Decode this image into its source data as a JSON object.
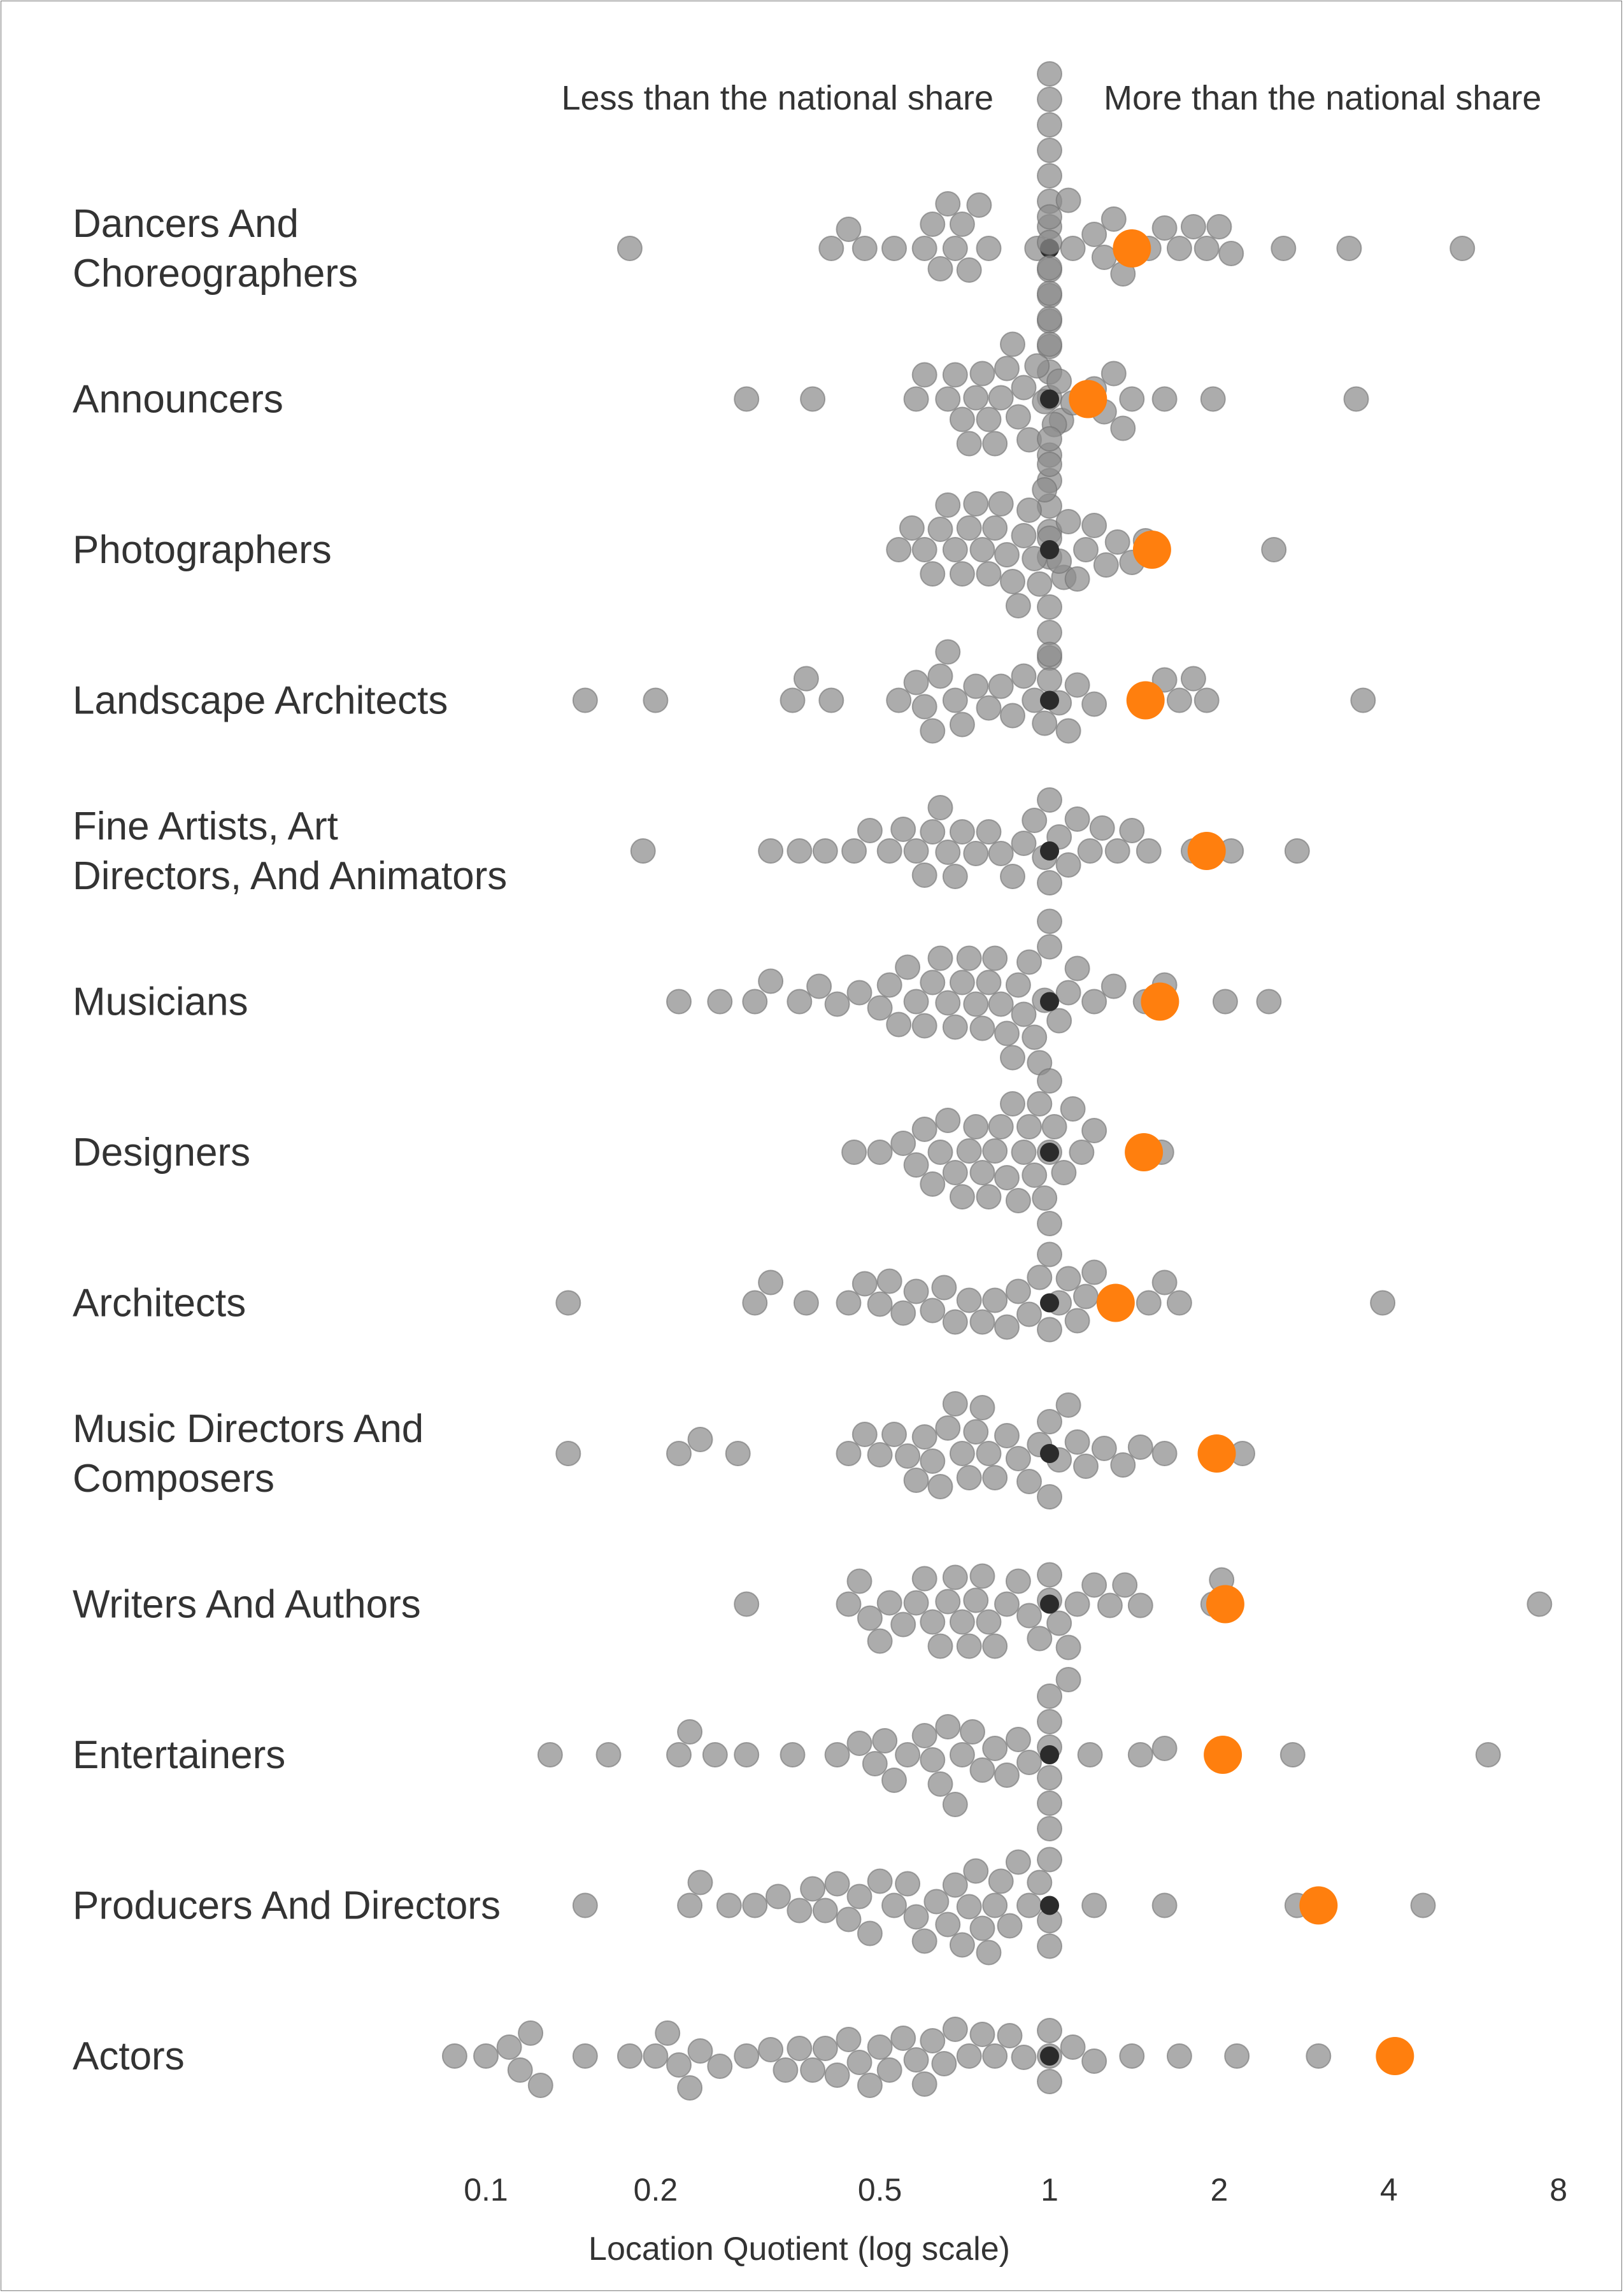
{
  "chart_data": {
    "type": "scatter",
    "subtype": "beeswarm",
    "xlabel": "Location Quotient (log scale)",
    "x_scale": "log",
    "xlim": [
      0.07,
      9
    ],
    "xticks": [
      0.1,
      0.2,
      0.5,
      1,
      2,
      4,
      8
    ],
    "xtick_labels": [
      "0.1",
      "0.2",
      "0.5",
      "1",
      "2",
      "4",
      "8"
    ],
    "annotations": {
      "left": "Less than the national share",
      "right": "More than the national share"
    },
    "grid": false,
    "legend": "none",
    "colors": {
      "others": "#8c8c8c",
      "highlight": "#ff7f0e",
      "reference": "#2b2b2b",
      "text": "#333333"
    },
    "categories": [
      {
        "label": [
          "Dancers And",
          "Choreographers"
        ],
        "highlight": 1.4,
        "others": [
          0.18,
          0.41,
          0.44,
          0.47,
          0.53,
          0.6,
          0.62,
          0.64,
          0.66,
          0.68,
          0.7,
          0.72,
          0.75,
          0.78,
          0.95,
          1,
          1,
          1,
          1,
          1,
          1,
          1,
          1,
          1,
          1,
          1,
          1,
          1,
          1.05,
          1.1,
          1.2,
          1.25,
          1.3,
          1.35,
          1.5,
          1.6,
          1.7,
          1.8,
          1.9,
          2.0,
          2.1,
          2.6,
          3.4,
          5.4
        ]
      },
      {
        "label": [
          "Announcers"
        ],
        "highlight": 1.17,
        "others": [
          0.29,
          0.38,
          0.58,
          0.6,
          0.66,
          0.68,
          0.7,
          0.72,
          0.74,
          0.76,
          0.78,
          0.8,
          0.82,
          0.84,
          0.86,
          0.88,
          0.9,
          0.92,
          0.95,
          0.98,
          1,
          1,
          1,
          1,
          1,
          1,
          1,
          1,
          1,
          1,
          1,
          1.02,
          1.04,
          1.06,
          1.08,
          1.1,
          1.2,
          1.25,
          1.3,
          1.35,
          1.4,
          1.6,
          1.95,
          3.5
        ]
      },
      {
        "label": [
          "Photographers"
        ],
        "highlight": 1.52,
        "others": [
          0.54,
          0.57,
          0.6,
          0.62,
          0.64,
          0.66,
          0.68,
          0.7,
          0.72,
          0.74,
          0.76,
          0.78,
          0.8,
          0.82,
          0.84,
          0.86,
          0.88,
          0.9,
          0.92,
          0.94,
          0.96,
          0.98,
          1,
          1,
          1,
          1,
          1,
          1,
          1.04,
          1.08,
          1.12,
          1.16,
          1.2,
          1.26,
          1.32,
          1.4,
          1.48,
          2.5
        ]
      },
      {
        "label": [
          "Landscape Architects"
        ],
        "highlight": 1.48,
        "others": [
          0.15,
          0.2,
          0.35,
          0.37,
          0.41,
          0.54,
          0.58,
          0.6,
          0.62,
          0.64,
          0.66,
          0.68,
          0.7,
          0.74,
          0.78,
          0.82,
          0.86,
          0.9,
          0.94,
          0.98,
          1,
          1,
          1.04,
          1.08,
          1.12,
          1.2,
          1.5,
          1.6,
          1.7,
          1.8,
          1.9,
          3.6
        ]
      },
      {
        "label": [
          "Fine Artists, Art",
          "Directors, And Animators"
        ],
        "highlight": 1.9,
        "others": [
          0.19,
          0.32,
          0.36,
          0.4,
          0.45,
          0.48,
          0.52,
          0.55,
          0.58,
          0.6,
          0.62,
          0.64,
          0.66,
          0.68,
          0.7,
          0.74,
          0.78,
          0.82,
          0.86,
          0.9,
          0.94,
          0.98,
          1,
          1,
          1.04,
          1.08,
          1.12,
          1.18,
          1.24,
          1.32,
          1.4,
          1.5,
          1.8,
          2.1,
          2.75
        ]
      },
      {
        "label": [
          "Musicians"
        ],
        "highlight": 1.57,
        "others": [
          0.22,
          0.26,
          0.3,
          0.32,
          0.36,
          0.39,
          0.42,
          0.46,
          0.5,
          0.52,
          0.54,
          0.56,
          0.58,
          0.6,
          0.62,
          0.64,
          0.66,
          0.68,
          0.7,
          0.72,
          0.74,
          0.76,
          0.78,
          0.8,
          0.82,
          0.84,
          0.86,
          0.88,
          0.9,
          0.92,
          0.94,
          0.96,
          0.98,
          1,
          1,
          1.04,
          1.08,
          1.12,
          1.2,
          1.3,
          1.48,
          1.6,
          2.05,
          2.45
        ]
      },
      {
        "label": [
          "Designers"
        ],
        "highlight": 1.47,
        "others": [
          0.45,
          0.5,
          0.55,
          0.58,
          0.6,
          0.62,
          0.64,
          0.66,
          0.68,
          0.7,
          0.72,
          0.74,
          0.76,
          0.78,
          0.8,
          0.82,
          0.84,
          0.86,
          0.88,
          0.9,
          0.92,
          0.94,
          0.96,
          0.98,
          1,
          1,
          1,
          1.02,
          1.06,
          1.1,
          1.14,
          1.2,
          1.58
        ]
      },
      {
        "label": [
          "Architects"
        ],
        "highlight": 1.31,
        "others": [
          0.14,
          0.3,
          0.32,
          0.37,
          0.44,
          0.47,
          0.5,
          0.52,
          0.55,
          0.58,
          0.62,
          0.65,
          0.68,
          0.72,
          0.76,
          0.8,
          0.84,
          0.88,
          0.92,
          0.96,
          1,
          1,
          1.04,
          1.08,
          1.12,
          1.16,
          1.2,
          1.3,
          1.5,
          1.6,
          1.7,
          3.9
        ]
      },
      {
        "label": [
          "Music Directors And",
          "Composers"
        ],
        "highlight": 1.98,
        "others": [
          0.14,
          0.22,
          0.24,
          0.28,
          0.44,
          0.47,
          0.5,
          0.53,
          0.56,
          0.58,
          0.6,
          0.62,
          0.64,
          0.66,
          0.68,
          0.7,
          0.72,
          0.74,
          0.76,
          0.78,
          0.8,
          0.84,
          0.88,
          0.92,
          0.96,
          1,
          1,
          1.04,
          1.08,
          1.12,
          1.16,
          1.25,
          1.35,
          1.45,
          1.6,
          2.2
        ]
      },
      {
        "label": [
          "Writers And Authors"
        ],
        "highlight": 2.05,
        "others": [
          0.29,
          0.44,
          0.46,
          0.48,
          0.5,
          0.52,
          0.55,
          0.58,
          0.6,
          0.62,
          0.64,
          0.66,
          0.68,
          0.7,
          0.72,
          0.74,
          0.76,
          0.78,
          0.8,
          0.84,
          0.88,
          0.92,
          0.96,
          1,
          1,
          1.04,
          1.08,
          1.12,
          1.2,
          1.28,
          1.36,
          1.45,
          1.95,
          2.02,
          7.4
        ]
      },
      {
        "label": [
          "Entertainers"
        ],
        "highlight": 2.03,
        "others": [
          0.13,
          0.165,
          0.22,
          0.23,
          0.255,
          0.29,
          0.35,
          0.42,
          0.46,
          0.49,
          0.51,
          0.53,
          0.56,
          0.6,
          0.62,
          0.64,
          0.66,
          0.68,
          0.7,
          0.73,
          0.76,
          0.8,
          0.84,
          0.88,
          0.92,
          1,
          1,
          1,
          1,
          1,
          1,
          1.08,
          1.18,
          1.45,
          1.6,
          2.7,
          6.0
        ]
      },
      {
        "label": [
          "Producers And Directors"
        ],
        "highlight": 3.0,
        "others": [
          0.15,
          0.23,
          0.24,
          0.27,
          0.3,
          0.33,
          0.36,
          0.38,
          0.4,
          0.42,
          0.44,
          0.46,
          0.48,
          0.5,
          0.53,
          0.56,
          0.58,
          0.6,
          0.63,
          0.66,
          0.68,
          0.7,
          0.72,
          0.74,
          0.76,
          0.78,
          0.8,
          0.82,
          0.85,
          0.88,
          0.92,
          0.96,
          1,
          1,
          1,
          1.2,
          1.6,
          2.75,
          4.6
        ]
      },
      {
        "label": [
          "Actors"
        ],
        "highlight": 4.1,
        "others": [
          0.088,
          0.1,
          0.11,
          0.115,
          0.12,
          0.125,
          0.15,
          0.18,
          0.2,
          0.21,
          0.22,
          0.23,
          0.24,
          0.26,
          0.29,
          0.32,
          0.34,
          0.36,
          0.38,
          0.4,
          0.42,
          0.44,
          0.46,
          0.48,
          0.5,
          0.52,
          0.55,
          0.58,
          0.6,
          0.62,
          0.65,
          0.68,
          0.72,
          0.76,
          0.8,
          0.85,
          0.9,
          1,
          1,
          1,
          1.1,
          1.2,
          1.4,
          1.7,
          2.15,
          3.0
        ]
      }
    ]
  }
}
